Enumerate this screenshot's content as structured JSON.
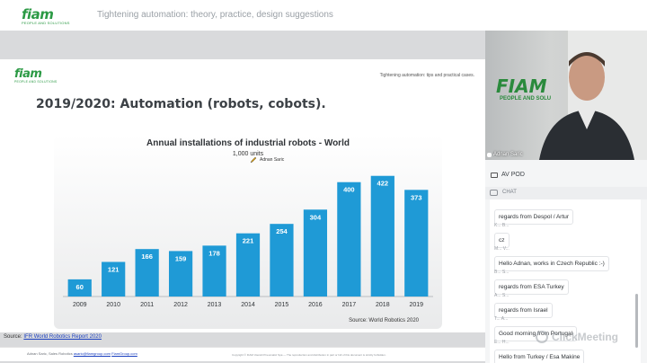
{
  "header": {
    "logo_word": "fiam",
    "logo_sub": "PEOPLE AND SOLUTIONS",
    "title": "Tightening automation: theory, practice, design suggestions"
  },
  "slide": {
    "logo_word": "fiam",
    "logo_sub": "PEOPLE AND SOLUTIONS",
    "tag": "Tightening automation: tips and practical cases.",
    "heading": "2019/2020: Automation (robots, cobots).",
    "pointer_label": "Adnan Saric",
    "source_prefix": "Source: ",
    "source_link": "IFR World Robotics Report 2020",
    "footer_left": "Adnan Saric, Sales Robotics",
    "footer_email": "asaric@fiamgroup.com",
    "footer_site": "FiamGroup.com",
    "footer_right": "Copyright © FIAM Utensili Pneumatici Spa — The reproduction and distribution in part or full of this document is strictly forbidden."
  },
  "chart_data": {
    "type": "bar",
    "title": "Annual installations of industrial robots - World",
    "subtitle": "1,000 units",
    "source": "Source: World Robotics 2020",
    "categories": [
      "2009",
      "2010",
      "2011",
      "2012",
      "2013",
      "2014",
      "2015",
      "2016",
      "2017",
      "2018",
      "2019"
    ],
    "values": [
      60,
      121,
      166,
      159,
      178,
      221,
      254,
      304,
      400,
      422,
      373
    ],
    "ylim": [
      0,
      440
    ],
    "bar_color": "#1f9ad6",
    "grid": false
  },
  "video": {
    "brand": "FIAM",
    "brand_sub": "PEOPLE AND SOLU",
    "participant": "Adnan Saric"
  },
  "panel": {
    "av_label": "AV POD",
    "chat_label": "CHAT"
  },
  "chat": {
    "messages": [
      {
        "author": "",
        "text": "regards from Despol / Artur"
      },
      {
        "author": "K... B...",
        "text": "cz"
      },
      {
        "author": "M... V...",
        "text": "Hello Adnan, works in Czech Republic :-)"
      },
      {
        "author": "B... S...",
        "text": "regards from ESA Turkey"
      },
      {
        "author": "A... S...",
        "text": "regards from Israel"
      },
      {
        "author": "T... A...",
        "text": "Good morning from Portugal"
      },
      {
        "author": "E... H...",
        "text": "Hello from Turkey / Esa Makine"
      }
    ]
  },
  "watermark": "ClickMeeting"
}
